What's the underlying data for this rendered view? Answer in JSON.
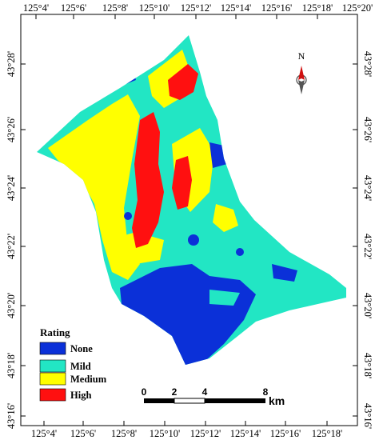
{
  "map": {
    "colors": {
      "none": "#0b30d8",
      "mild": "#22e6c4",
      "medium": "#ffff00",
      "high": "#ff1010"
    },
    "top_ticks": [
      "125°4'",
      "125°6'",
      "125°8'",
      "125°10'",
      "125°12'",
      "125°14'",
      "125°16'",
      "125°18'",
      "125°20'"
    ],
    "bottom_ticks": [
      "125°4'",
      "125°6'",
      "125°8'",
      "125°10'",
      "125°12'",
      "125°14'",
      "125°16'",
      "125°18'"
    ],
    "left_ticks": [
      "43°28'",
      "43°26'",
      "43°24'",
      "43°22'",
      "43°20'",
      "43°18'",
      "43°16'"
    ],
    "right_ticks": [
      "43°28'",
      "43°26'",
      "43°24'",
      "43°22'",
      "43°20'",
      "43°18'",
      "43°16'"
    ]
  },
  "legend": {
    "title": "Rating",
    "items": [
      {
        "key": "none",
        "label": "None",
        "color": "#0b30d8"
      },
      {
        "key": "mild",
        "label": "Mild",
        "color": "#22e6c4"
      },
      {
        "key": "medium",
        "label": "Medium",
        "color": "#ffff00"
      },
      {
        "key": "high",
        "label": "High",
        "color": "#ff1010"
      }
    ]
  },
  "scale_bar": {
    "labels": [
      "0",
      "2",
      "4",
      "8"
    ],
    "unit": "km"
  },
  "north_arrow": {
    "label": "N",
    "icon": "north-arrow-icon"
  }
}
